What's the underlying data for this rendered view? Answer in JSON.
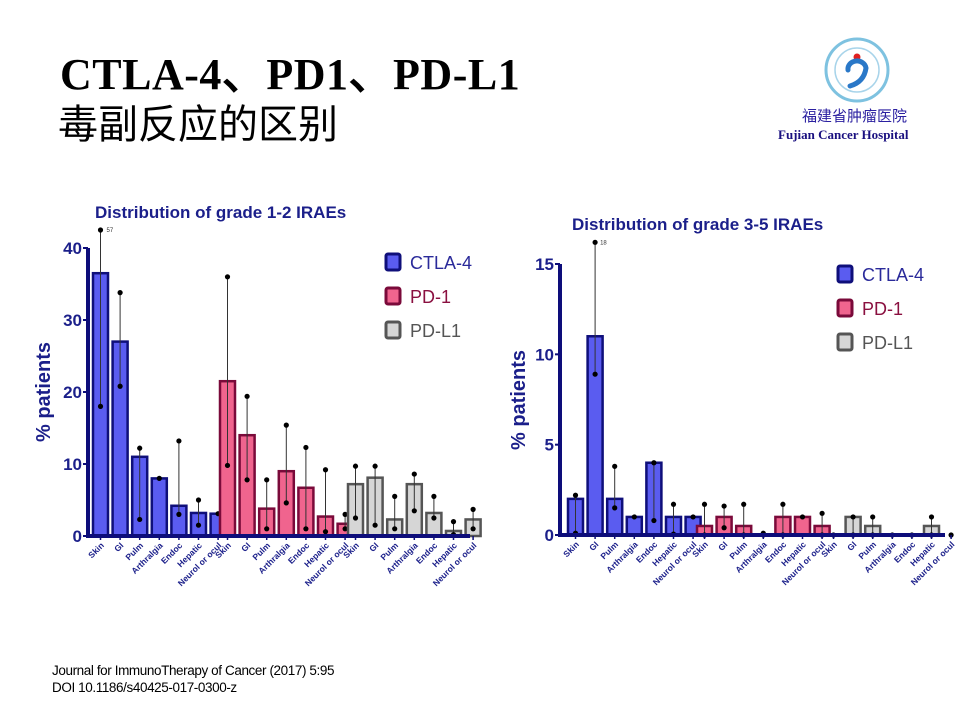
{
  "slide": {
    "title_line1": "CTLA-4、PD1、PD-L1",
    "title_line2": "毒副反应的区别",
    "logo": {
      "name_cn": "福建省肿瘤医院",
      "name_en": "Fujian Cancer Hospital",
      "icon": "hospital-logo-icon"
    },
    "citation_line1": "Journal for ImmunoTherapy of Cancer  (2017) 5:95",
    "citation_line2": "DOI 10.1186/s40425-017-0300-z"
  },
  "colors": {
    "axis": "#0d0d7a",
    "text": "#1b1f8a",
    "CTLA-4": {
      "fill": "#5a5cf0",
      "stroke": "#0f0f7a"
    },
    "PD-1": {
      "fill": "#f0648e",
      "stroke": "#7a0a3a"
    },
    "PD-L1": {
      "fill": "#d6d6d6",
      "stroke": "#555555"
    }
  },
  "chart_data": [
    {
      "type": "bar",
      "title": "Distribution of grade 1-2 IRAEs",
      "xlabel": "",
      "ylabel": "% patients",
      "ylim": [
        0,
        40
      ],
      "yticks": [
        "0",
        "10",
        "20",
        "30",
        "40"
      ],
      "ytick_values": [
        0,
        10,
        20,
        30,
        40
      ],
      "grid": false,
      "legend_position": "top-right",
      "categories": [
        "Skin",
        "GI",
        "Pulm",
        "Arthralgia",
        "Endoc",
        "Hepatic",
        "Neurol or ocul"
      ],
      "series": [
        {
          "name": "CTLA-4",
          "values": [
            36.5,
            27,
            11,
            8,
            4.2,
            3.2,
            3.1
          ],
          "low": [
            18,
            20.8,
            2.3,
            8,
            3,
            1.5,
            3.1
          ],
          "high": [
            42.5,
            33.8,
            12.2,
            8,
            13.2,
            5,
            3.1
          ],
          "annotations": [
            {
              "category": "Skin",
              "text": "57"
            }
          ]
        },
        {
          "name": "PD-1",
          "values": [
            21.5,
            14,
            3.8,
            9,
            6.7,
            2.7,
            1.7
          ],
          "low": [
            9.8,
            7.8,
            1,
            4.6,
            1,
            0.6,
            1
          ],
          "high": [
            36,
            19.4,
            7.8,
            15.4,
            12.3,
            9.2,
            3
          ]
        },
        {
          "name": "PD-L1",
          "values": [
            7.2,
            8.1,
            2.3,
            7.2,
            3.2,
            0.7,
            2.3
          ],
          "low": [
            2.5,
            1.5,
            1,
            3.5,
            2.5,
            0.2,
            1
          ],
          "high": [
            9.7,
            9.7,
            5.5,
            8.6,
            5.5,
            2,
            3.7
          ]
        }
      ]
    },
    {
      "type": "bar",
      "title": "Distribution of grade 3-5 IRAEs",
      "xlabel": "",
      "ylabel": "% patients",
      "ylim": [
        0,
        15
      ],
      "yticks": [
        "0",
        "5",
        "10",
        "15"
      ],
      "ytick_values": [
        0,
        5,
        10,
        15
      ],
      "grid": false,
      "legend_position": "top-right",
      "categories": [
        "Skin",
        "GI",
        "Pulm",
        "Arthralgia",
        "Endoc",
        "Hepatic",
        "Neurol or ocul"
      ],
      "series": [
        {
          "name": "CTLA-4",
          "values": [
            2.0,
            11.0,
            2.0,
            1.0,
            4.0,
            1.0,
            1.0
          ],
          "low": [
            0.1,
            8.9,
            1.5,
            1.0,
            0.8,
            0.05,
            1.0
          ],
          "high": [
            2.2,
            16.2,
            3.8,
            1.0,
            4.0,
            1.7,
            1.0
          ],
          "annotations": [
            {
              "category": "GI",
              "text": "18"
            }
          ]
        },
        {
          "name": "PD-1",
          "values": [
            0.5,
            1.0,
            0.5,
            0,
            1.0,
            1.0,
            0.5
          ],
          "low": [
            0,
            0.4,
            0,
            0,
            0,
            1.0,
            0
          ],
          "high": [
            1.7,
            1.6,
            1.7,
            0.1,
            1.7,
            1.0,
            1.2
          ]
        },
        {
          "name": "PD-L1",
          "values": [
            0,
            1.0,
            0.5,
            0,
            0,
            0.5,
            0
          ],
          "low": [
            0,
            0,
            0,
            0,
            0,
            0,
            0
          ],
          "high": [
            0,
            1.0,
            1.0,
            0,
            0,
            1.0,
            0
          ]
        }
      ]
    }
  ]
}
